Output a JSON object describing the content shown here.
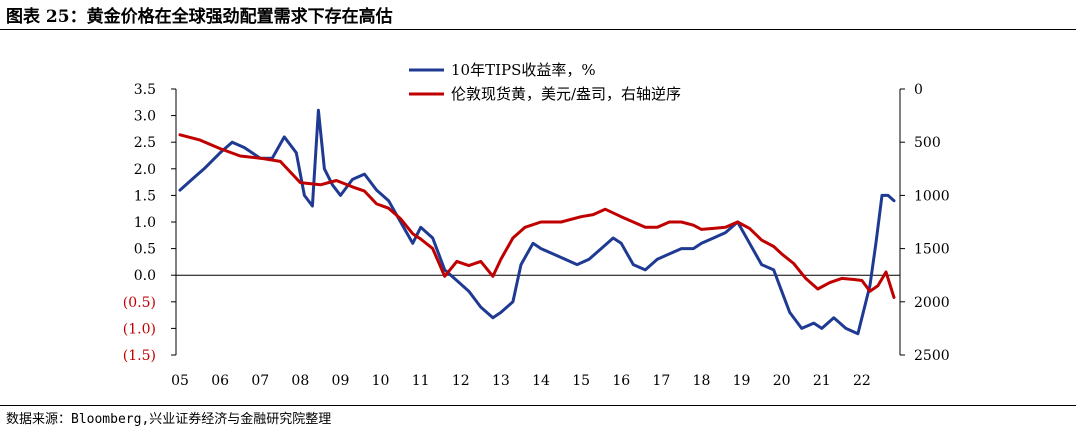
{
  "header": {
    "title": "图表 25：黄金价格在全球强劲配置需求下存在高估"
  },
  "footer": {
    "source": "数据来源：Bloomberg,兴业证券经济与金融研究院整理"
  },
  "chart_data": {
    "type": "line",
    "x_tick_labels": [
      "05",
      "06",
      "07",
      "08",
      "09",
      "10",
      "11",
      "12",
      "13",
      "14",
      "15",
      "16",
      "17",
      "18",
      "19",
      "20",
      "21",
      "22"
    ],
    "y_left_ticks": [
      "3.5",
      "3.0",
      "2.5",
      "2.0",
      "1.5",
      "1.0",
      "0.5",
      "0.0",
      "(0.5)",
      "(1.0)",
      "(1.5)"
    ],
    "y_left_tick_values": [
      3.5,
      3.0,
      2.5,
      2.0,
      1.5,
      1.0,
      0.5,
      0.0,
      -0.5,
      -1.0,
      -1.5
    ],
    "y_left_range": [
      -1.5,
      3.5
    ],
    "y_right_ticks": [
      "0",
      "500",
      "1000",
      "1500",
      "2000",
      "2500"
    ],
    "y_right_tick_values": [
      0,
      500,
      1000,
      1500,
      2000,
      2500
    ],
    "y_right_range": [
      0,
      2500
    ],
    "y_right_inverted": true,
    "negative_tick_color": "#c00000",
    "legend_position": "top-center",
    "series": [
      {
        "name": "10年TIPS收益率，%",
        "axis": "left",
        "color": "#1f3a93",
        "x": [
          2005.0,
          2005.3,
          2005.6,
          2006.0,
          2006.3,
          2006.6,
          2007.0,
          2007.3,
          2007.6,
          2007.9,
          2008.1,
          2008.3,
          2008.45,
          2008.6,
          2008.8,
          2009.0,
          2009.3,
          2009.6,
          2009.9,
          2010.2,
          2010.5,
          2010.8,
          2011.0,
          2011.3,
          2011.6,
          2011.9,
          2012.2,
          2012.5,
          2012.8,
          2013.0,
          2013.3,
          2013.5,
          2013.8,
          2014.0,
          2014.3,
          2014.6,
          2014.9,
          2015.2,
          2015.5,
          2015.8,
          2016.0,
          2016.3,
          2016.6,
          2016.9,
          2017.2,
          2017.5,
          2017.8,
          2018.0,
          2018.3,
          2018.6,
          2018.9,
          2019.2,
          2019.5,
          2019.8,
          2020.0,
          2020.2,
          2020.5,
          2020.8,
          2021.0,
          2021.3,
          2021.6,
          2021.9,
          2022.0,
          2022.2,
          2022.35,
          2022.5,
          2022.65,
          2022.8
        ],
        "values": [
          1.6,
          1.8,
          2.0,
          2.3,
          2.5,
          2.4,
          2.2,
          2.2,
          2.6,
          2.3,
          1.5,
          1.3,
          3.1,
          2.0,
          1.7,
          1.5,
          1.8,
          1.9,
          1.6,
          1.4,
          1.0,
          0.6,
          0.9,
          0.7,
          0.1,
          -0.1,
          -0.3,
          -0.6,
          -0.8,
          -0.7,
          -0.5,
          0.2,
          0.6,
          0.5,
          0.4,
          0.3,
          0.2,
          0.3,
          0.5,
          0.7,
          0.6,
          0.2,
          0.1,
          0.3,
          0.4,
          0.5,
          0.5,
          0.6,
          0.7,
          0.8,
          1.0,
          0.6,
          0.2,
          0.1,
          -0.3,
          -0.7,
          -1.0,
          -0.9,
          -1.0,
          -0.8,
          -1.0,
          -1.1,
          -0.8,
          -0.2,
          0.6,
          1.5,
          1.5,
          1.4
        ]
      },
      {
        "name": "伦敦现货黄，美元/盎司，右轴逆序",
        "axis": "right",
        "color": "#c00000",
        "x": [
          2005.0,
          2005.5,
          2006.0,
          2006.5,
          2007.0,
          2007.5,
          2008.0,
          2008.5,
          2008.9,
          2009.3,
          2009.6,
          2009.9,
          2010.2,
          2010.5,
          2010.8,
          2011.0,
          2011.3,
          2011.6,
          2011.9,
          2012.2,
          2012.5,
          2012.8,
          2013.0,
          2013.3,
          2013.6,
          2014.0,
          2014.5,
          2015.0,
          2015.3,
          2015.6,
          2016.0,
          2016.3,
          2016.6,
          2016.9,
          2017.2,
          2017.5,
          2017.8,
          2018.0,
          2018.3,
          2018.6,
          2018.9,
          2019.2,
          2019.5,
          2019.8,
          2020.0,
          2020.3,
          2020.6,
          2020.9,
          2021.2,
          2021.5,
          2021.8,
          2022.0,
          2022.2,
          2022.4,
          2022.6,
          2022.8
        ],
        "values": [
          430,
          480,
          560,
          630,
          650,
          680,
          880,
          900,
          860,
          920,
          960,
          1080,
          1120,
          1220,
          1360,
          1410,
          1500,
          1760,
          1620,
          1660,
          1620,
          1760,
          1600,
          1400,
          1300,
          1250,
          1250,
          1200,
          1180,
          1130,
          1200,
          1250,
          1300,
          1300,
          1250,
          1250,
          1280,
          1320,
          1310,
          1300,
          1250,
          1310,
          1420,
          1480,
          1550,
          1640,
          1780,
          1880,
          1820,
          1780,
          1790,
          1800,
          1900,
          1850,
          1720,
          1960
        ]
      }
    ]
  }
}
